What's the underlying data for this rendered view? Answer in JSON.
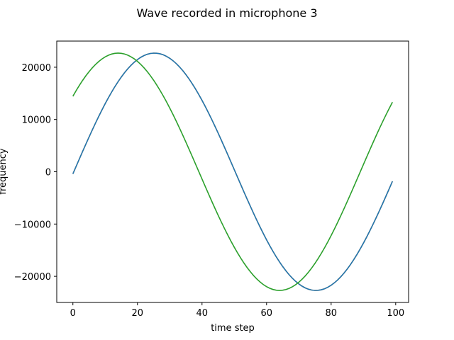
{
  "chart_data": {
    "type": "line",
    "title": "Wave recorded in microphone 3",
    "xlabel": "time step",
    "ylabel": "frequency",
    "xlim": [
      -5,
      104
    ],
    "ylim": [
      -25000,
      25000
    ],
    "xticks": [
      0,
      20,
      40,
      60,
      80,
      100
    ],
    "yticks": [
      -20000,
      -10000,
      0,
      10000,
      20000
    ],
    "grid": false,
    "series": [
      {
        "color": "#ff7f0e",
        "x_start": 0,
        "x_end": 99,
        "x_step": 1,
        "amplitude": 22700,
        "period": 100,
        "phase_deg": -1
      },
      {
        "color": "#1f77b4",
        "x_start": 0,
        "x_end": 99,
        "x_step": 1,
        "amplitude": 22700,
        "period": 100,
        "phase_deg": -1
      },
      {
        "color": "#2ca02c",
        "x_start": 0,
        "x_end": 99,
        "x_step": 1,
        "amplitude": 22700,
        "period": 100,
        "phase_deg": 39.5
      }
    ]
  }
}
